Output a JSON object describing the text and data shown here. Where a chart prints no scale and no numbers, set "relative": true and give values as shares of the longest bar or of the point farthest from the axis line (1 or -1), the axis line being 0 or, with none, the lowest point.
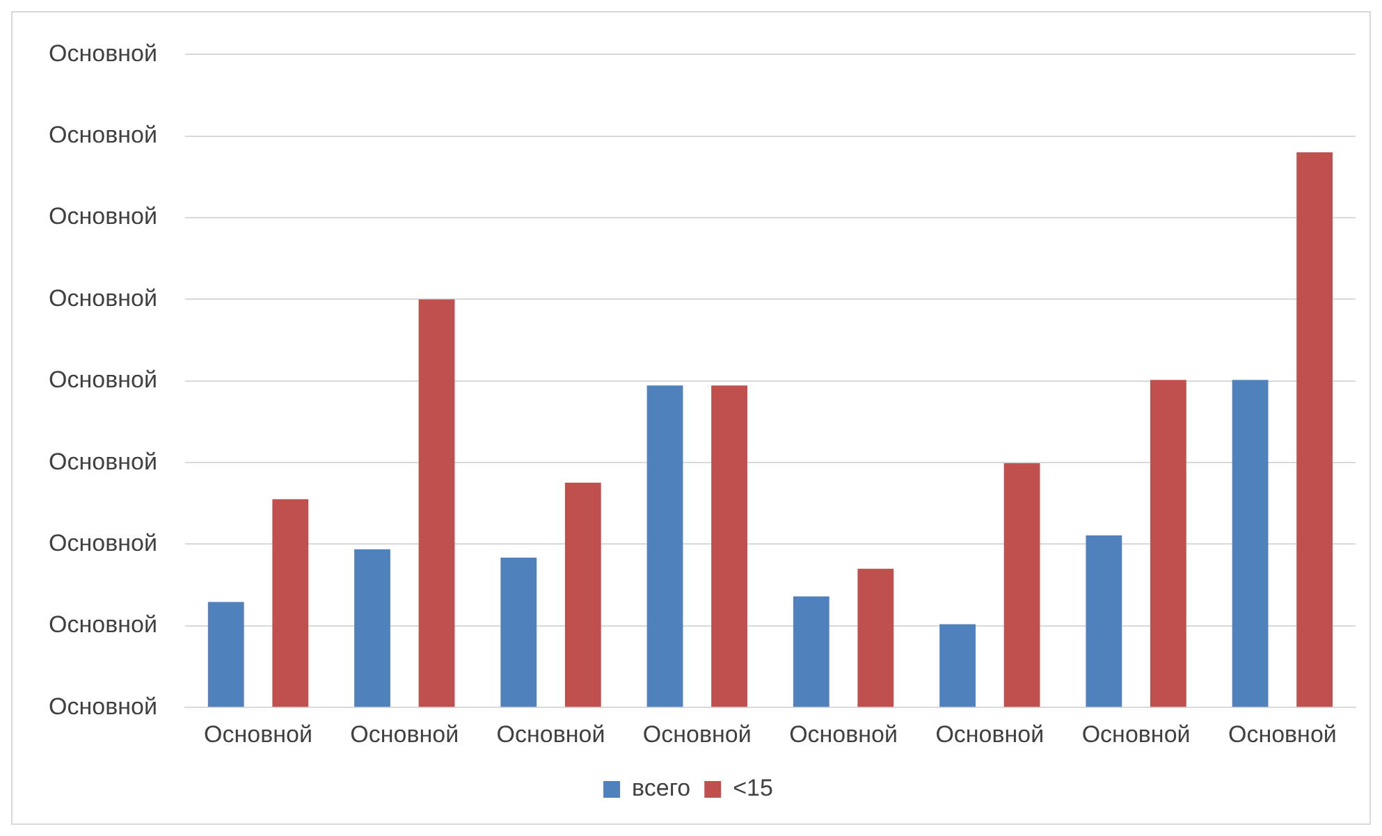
{
  "chart_data": {
    "type": "bar",
    "relative": true,
    "categories": [
      "Основной",
      "Основной",
      "Основной",
      "Основной",
      "Основной",
      "Основной",
      "Основной",
      "Основной"
    ],
    "series": [
      {
        "name": "всего",
        "color": "#4f81bd",
        "values": [
          0.19,
          0.285,
          0.27,
          0.58,
          0.2,
          0.15,
          0.31,
          0.59
        ]
      },
      {
        "name": "<15",
        "color": "#c0504d",
        "values": [
          0.375,
          0.735,
          0.405,
          0.58,
          0.25,
          0.44,
          0.59,
          1
        ]
      }
    ],
    "annotations": [
      "Основной",
      "Основной",
      "Основной",
      "Основной",
      "Основной",
      "Основной",
      "Основной",
      "Основной",
      "Основной"
    ],
    "grid": "y",
    "legend": "bottom"
  }
}
